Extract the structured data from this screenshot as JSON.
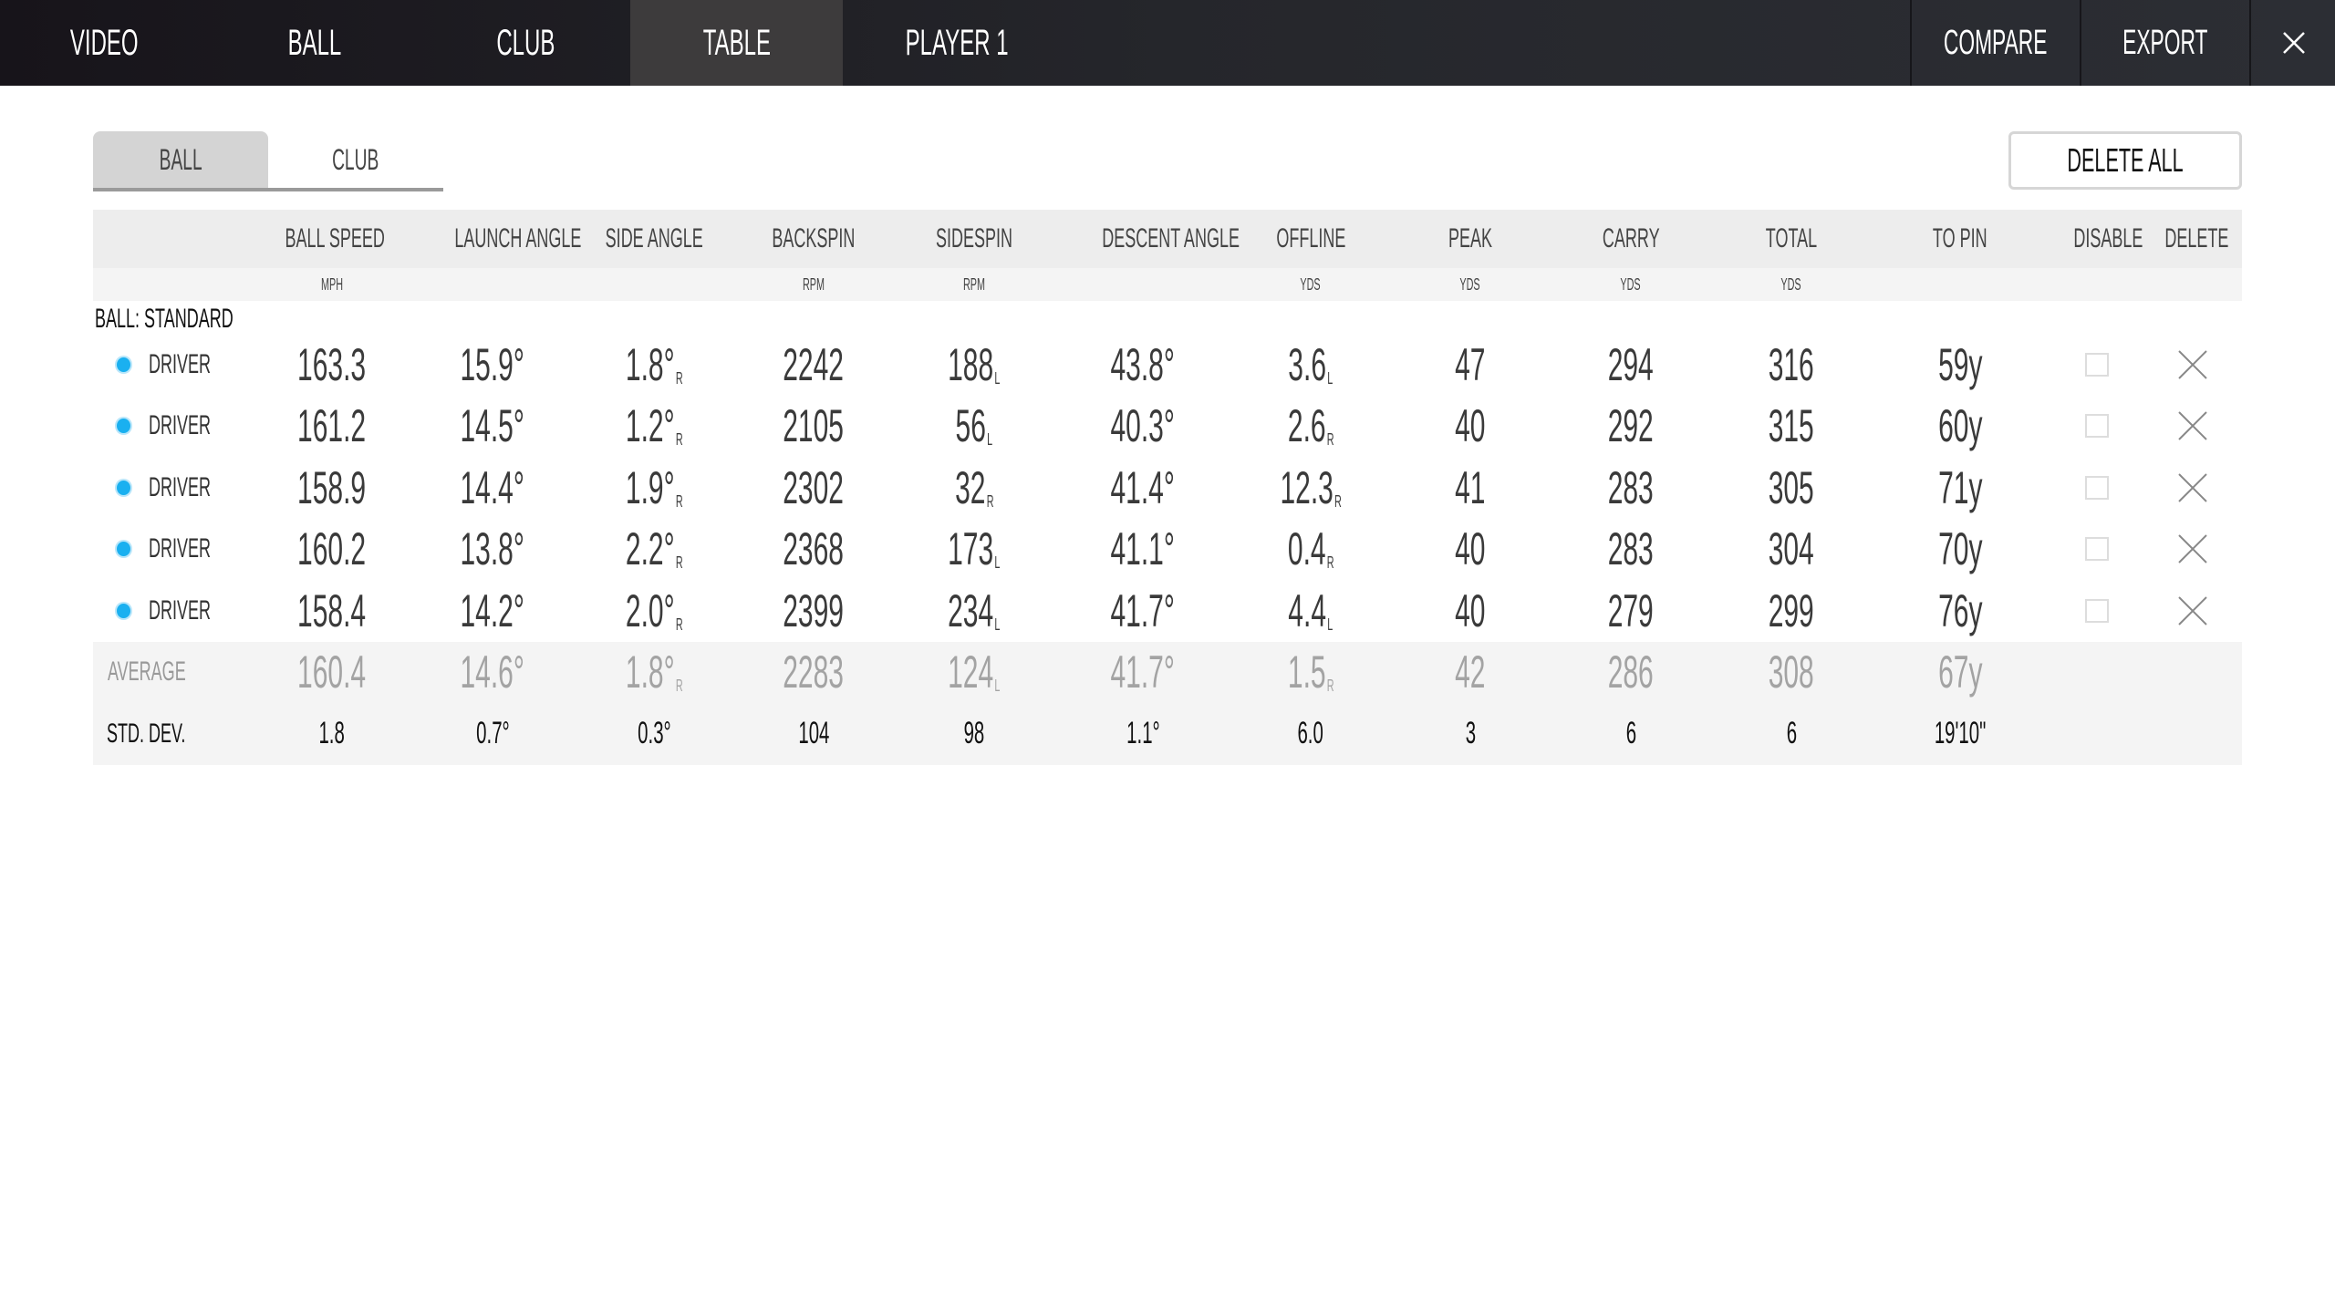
{
  "nav": {
    "tabs": [
      {
        "label": "VIDEO",
        "active": false
      },
      {
        "label": "BALL",
        "active": false
      },
      {
        "label": "CLUB",
        "active": false
      },
      {
        "label": "TABLE",
        "active": true
      },
      {
        "label": "PLAYER 1",
        "active": false
      }
    ],
    "compare_label": "COMPARE",
    "export_label": "EXPORT",
    "close_icon": "close-icon"
  },
  "subtabs": [
    {
      "label": "BALL",
      "active": true
    },
    {
      "label": "CLUB",
      "active": false
    }
  ],
  "delete_all_label": "DELETE ALL",
  "table": {
    "columns": [
      "",
      "BALL SPEED",
      "LAUNCH ANGLE",
      "SIDE ANGLE",
      "BACKSPIN",
      "SIDESPIN",
      "DESCENT ANGLE",
      "OFFLINE",
      "PEAK",
      "CARRY",
      "TOTAL",
      "TO PIN",
      "DISABLE",
      "DELETE"
    ],
    "units": [
      "",
      "MPH",
      "",
      "",
      "RPM",
      "RPM",
      "",
      "YDS",
      "YDS",
      "YDS",
      "YDS",
      "",
      "",
      ""
    ],
    "group_label": "BALL: STANDARD",
    "dot_color": "#1ab0f0",
    "rows": [
      {
        "club": "DRIVER",
        "disabled": false,
        "cells": [
          {
            "v": "163.3"
          },
          {
            "v": "15.9°"
          },
          {
            "v": "1.8°",
            "s": "R"
          },
          {
            "v": "2242"
          },
          {
            "v": "188",
            "s": "L"
          },
          {
            "v": "43.8°"
          },
          {
            "v": "3.6",
            "s": "L"
          },
          {
            "v": "47"
          },
          {
            "v": "294"
          },
          {
            "v": "316"
          },
          {
            "v": "59y"
          }
        ]
      },
      {
        "club": "DRIVER",
        "disabled": false,
        "cells": [
          {
            "v": "161.2"
          },
          {
            "v": "14.5°"
          },
          {
            "v": "1.2°",
            "s": "R"
          },
          {
            "v": "2105"
          },
          {
            "v": "56",
            "s": "L"
          },
          {
            "v": "40.3°"
          },
          {
            "v": "2.6",
            "s": "R"
          },
          {
            "v": "40"
          },
          {
            "v": "292"
          },
          {
            "v": "315"
          },
          {
            "v": "60y"
          }
        ]
      },
      {
        "club": "DRIVER",
        "disabled": false,
        "cells": [
          {
            "v": "158.9"
          },
          {
            "v": "14.4°"
          },
          {
            "v": "1.9°",
            "s": "R"
          },
          {
            "v": "2302"
          },
          {
            "v": "32",
            "s": "R"
          },
          {
            "v": "41.4°"
          },
          {
            "v": "12.3",
            "s": "R"
          },
          {
            "v": "41"
          },
          {
            "v": "283"
          },
          {
            "v": "305"
          },
          {
            "v": "71y"
          }
        ]
      },
      {
        "club": "DRIVER",
        "disabled": false,
        "cells": [
          {
            "v": "160.2"
          },
          {
            "v": "13.8°"
          },
          {
            "v": "2.2°",
            "s": "R"
          },
          {
            "v": "2368"
          },
          {
            "v": "173",
            "s": "L"
          },
          {
            "v": "41.1°"
          },
          {
            "v": "0.4",
            "s": "R"
          },
          {
            "v": "40"
          },
          {
            "v": "283"
          },
          {
            "v": "304"
          },
          {
            "v": "70y"
          }
        ]
      },
      {
        "club": "DRIVER",
        "disabled": false,
        "cells": [
          {
            "v": "158.4"
          },
          {
            "v": "14.2°"
          },
          {
            "v": "2.0°",
            "s": "R"
          },
          {
            "v": "2399"
          },
          {
            "v": "234",
            "s": "L"
          },
          {
            "v": "41.7°"
          },
          {
            "v": "4.4",
            "s": "L"
          },
          {
            "v": "40"
          },
          {
            "v": "279"
          },
          {
            "v": "299"
          },
          {
            "v": "76y"
          }
        ]
      }
    ],
    "average": {
      "label": "AVERAGE",
      "cells": [
        {
          "v": "160.4"
        },
        {
          "v": "14.6°"
        },
        {
          "v": "1.8°",
          "s": "R"
        },
        {
          "v": "2283"
        },
        {
          "v": "124",
          "s": "L"
        },
        {
          "v": "41.7°"
        },
        {
          "v": "1.5",
          "s": "R"
        },
        {
          "v": "42"
        },
        {
          "v": "286"
        },
        {
          "v": "308"
        },
        {
          "v": "67y"
        }
      ]
    },
    "std_dev": {
      "label": "STD. DEV.",
      "cells": [
        {
          "v": "1.8"
        },
        {
          "v": "0.7°"
        },
        {
          "v": "0.3°"
        },
        {
          "v": "104"
        },
        {
          "v": "98"
        },
        {
          "v": "1.1°"
        },
        {
          "v": "6.0"
        },
        {
          "v": "3"
        },
        {
          "v": "6"
        },
        {
          "v": "6"
        },
        {
          "v": "19'10\""
        }
      ]
    }
  }
}
